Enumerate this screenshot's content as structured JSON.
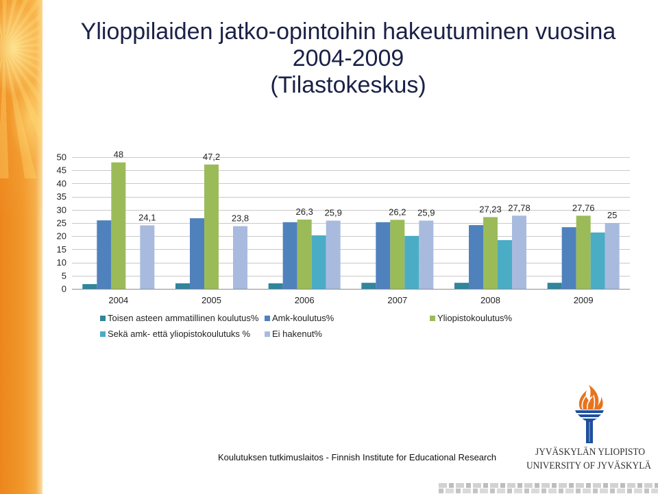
{
  "slide": {
    "footer": "Koulutuksen tutkimuslaitos - Finnish Institute for Educational Research",
    "logo": {
      "icon": "torch-icon",
      "line1": "JYVÄSKYLÄN YLIOPISTO",
      "line2": "UNIVERSITY OF JYVÄSKYLÄ"
    }
  },
  "colors": {
    "title": "#1A2147",
    "logo_blue": "#1D4F9E",
    "logo_flame": "#E8731E"
  },
  "chart_data": {
    "type": "bar",
    "title": "Ylioppilaiden jatko-opintoihin hakeutuminen vuosina\n2004-2009\n(Tilastokeskus)",
    "categories": [
      "2004",
      "2005",
      "2006",
      "2007",
      "2008",
      "2009"
    ],
    "series": [
      {
        "name": "Toisen asteen ammatillinen koulutus%",
        "color": "#31859C",
        "values": [
          1.8,
          2.1,
          2.1,
          2.3,
          2.3,
          2.3
        ]
      },
      {
        "name": "Amk-koulutus%",
        "color": "#4F81BD",
        "values": [
          26.0,
          26.8,
          25.3,
          25.3,
          24.2,
          23.4
        ]
      },
      {
        "name": "Yliopistokoulutus%",
        "color": "#9BBB59",
        "values": [
          48,
          47.2,
          26.3,
          26.2,
          27.23,
          27.76
        ],
        "data_labels": [
          "48",
          "47,2",
          "26,3",
          "26,2",
          "27,23",
          "27,76"
        ]
      },
      {
        "name": "Sekä amk- että yliopistokoulutuks %",
        "color": "#4BACC6",
        "values": [
          null,
          null,
          20.3,
          20.1,
          18.5,
          21.4
        ]
      },
      {
        "name": "Ei hakenut%",
        "color": "#A8BBDE",
        "values": [
          24.1,
          23.8,
          25.9,
          25.9,
          27.78,
          25
        ],
        "data_labels": [
          "24,1",
          "23,8",
          "25,9",
          "25,9",
          "27,78",
          "25"
        ]
      }
    ],
    "ylim": [
      0,
      50
    ],
    "y_ticks": [
      0,
      5,
      10,
      15,
      20,
      25,
      30,
      35,
      40,
      45,
      50
    ],
    "grid": true,
    "legend": "bottom"
  }
}
